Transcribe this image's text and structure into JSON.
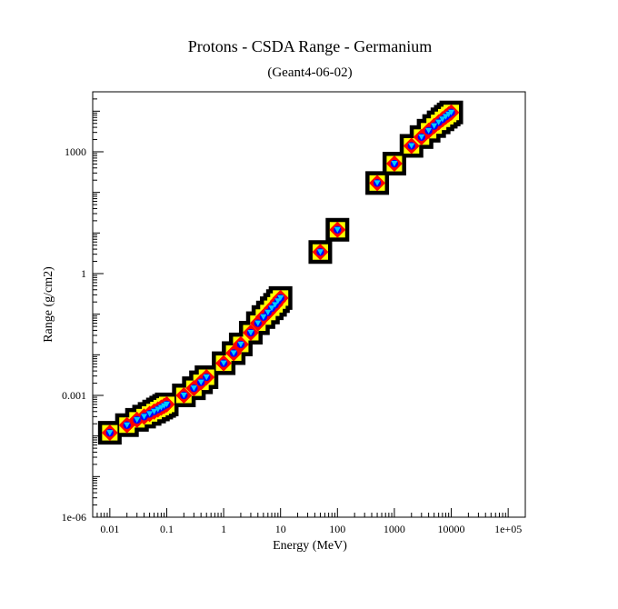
{
  "chart_data": {
    "type": "scatter",
    "title": "Protons - CSDA Range - Germanium",
    "subtitle": "(Geant4-06-02)",
    "xlabel": "Energy (MeV)",
    "ylabel": "Range (g/cm2)",
    "x_scale": "log",
    "y_scale": "log",
    "xlim": [
      0.005,
      200000
    ],
    "ylim": [
      1e-06,
      30000
    ],
    "x_tick_labels": [
      {
        "value": 0.01,
        "label": "0.01"
      },
      {
        "value": 0.1,
        "label": "0.1"
      },
      {
        "value": 1,
        "label": "1"
      },
      {
        "value": 10,
        "label": "10"
      },
      {
        "value": 100,
        "label": "100"
      },
      {
        "value": 1000,
        "label": "1000"
      },
      {
        "value": 10000,
        "label": "10000"
      },
      {
        "value": 100000,
        "label": "1e+05"
      }
    ],
    "y_tick_labels": [
      {
        "value": 1e-06,
        "label": "1e-06"
      },
      {
        "value": 0.001,
        "label": "0.001"
      },
      {
        "value": 1,
        "label": "1"
      },
      {
        "value": 1000,
        "label": "1000"
      }
    ],
    "grid": false,
    "legend": "none",
    "colors": {
      "outer_square": "#000000",
      "mid_square": "#ffff00",
      "diamond": "#ff0000",
      "inner_circle": "#0000ff",
      "triangle": "#00ccff"
    },
    "x": [
      0.01,
      0.02,
      0.03,
      0.04,
      0.05,
      0.06,
      0.07,
      0.08,
      0.09,
      0.1,
      0.2,
      0.3,
      0.4,
      0.5,
      1,
      1.5,
      2,
      3,
      4,
      5,
      6,
      7,
      8,
      9,
      10,
      50,
      100,
      500,
      1000,
      2000,
      3000,
      4000,
      5000,
      6000,
      7000,
      8000,
      9000,
      10000
    ],
    "y": [
      0.00012,
      0.000185,
      0.00025,
      0.0003,
      0.00035,
      0.0004,
      0.00045,
      0.0005,
      0.00055,
      0.0006,
      0.001,
      0.0015,
      0.0021,
      0.0028,
      0.0062,
      0.011,
      0.018,
      0.035,
      0.06,
      0.085,
      0.11,
      0.14,
      0.17,
      0.21,
      0.25,
      3.4,
      12,
      170,
      510,
      1400,
      2300,
      3300,
      4300,
      5300,
      6300,
      7300,
      8300,
      9300
    ]
  }
}
